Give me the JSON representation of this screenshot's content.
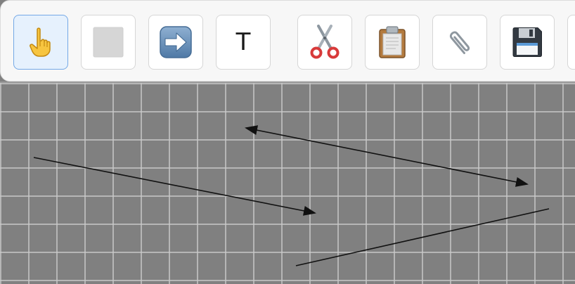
{
  "toolbar": {
    "tools": [
      {
        "name": "pointer",
        "icon": "pointing-hand-icon",
        "selected": true
      },
      {
        "name": "rectangle",
        "icon": "gray-square-icon",
        "selected": false
      },
      {
        "name": "arrow",
        "icon": "right-arrow-icon",
        "selected": false
      },
      {
        "name": "text",
        "icon": "text-t-icon",
        "label": "T",
        "selected": false
      },
      {
        "name": "cut",
        "icon": "scissors-icon",
        "selected": false
      },
      {
        "name": "paste",
        "icon": "clipboard-icon",
        "selected": false
      },
      {
        "name": "attach",
        "icon": "paperclip-icon",
        "selected": false
      },
      {
        "name": "save",
        "icon": "floppy-disk-icon",
        "selected": false
      }
    ]
  },
  "colors": {
    "canvas_background": "#808080",
    "grid_line": "#c8c8c8",
    "selected_tool_bg": "#e6f1fd",
    "selected_tool_border": "#74a8e6",
    "stroke": "#111111"
  }
}
